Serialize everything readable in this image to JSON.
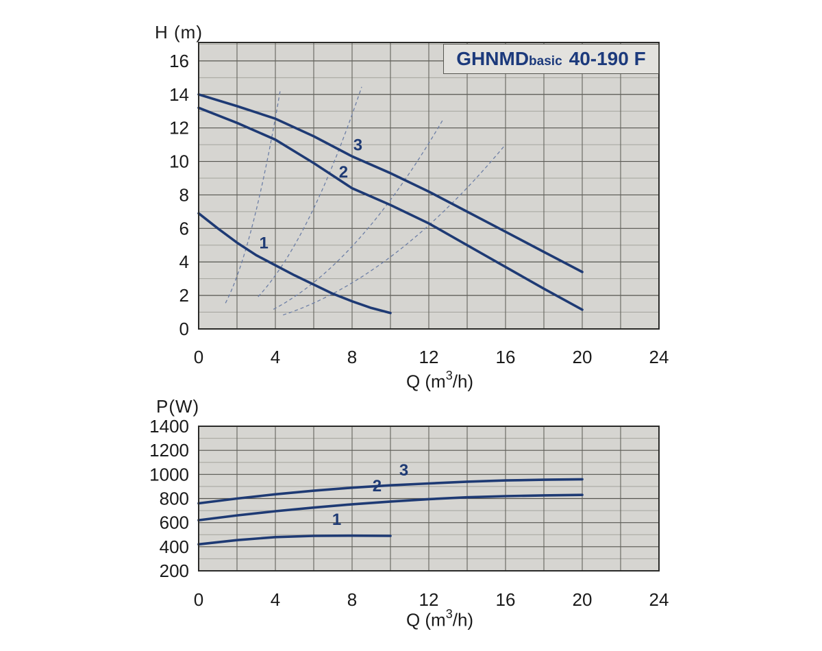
{
  "title": {
    "brand": "GHNMD",
    "sub": "basic",
    "model": "40-190 F"
  },
  "colors": {
    "curve": "#1e3a74",
    "curve_label": "#1e3a74",
    "system_curve": "#6d7fa6",
    "plot_bg": "#d6d5d1",
    "grid_major": "#55554f",
    "grid_minor": "#a3a39c",
    "grid_vertical": "#63635d",
    "border": "#2a2a28",
    "tick_text": "#1a1a1a",
    "title_text": "#1c3a7c",
    "title_band_bg": "#e3e2de"
  },
  "chart_data": [
    {
      "type": "line",
      "title": "GHNMD basic 40-190 F",
      "xlabel": "Q (m³/h)",
      "xlabel_parts": {
        "prefix": "Q (m",
        "sup": "3",
        "suffix": "/h)"
      },
      "ylabel": "H (m)",
      "xlim": [
        0,
        24
      ],
      "ylim": [
        0,
        17.1
      ],
      "xticks": [
        0,
        4,
        8,
        12,
        16,
        20,
        24
      ],
      "yticks": [
        0,
        2,
        4,
        6,
        8,
        10,
        12,
        14,
        16
      ],
      "grid": {
        "x_step": 2,
        "y_minor_step": 1,
        "y_major_step": 2,
        "legend": "none"
      },
      "series": [
        {
          "name": "1",
          "x": [
            0,
            1,
            2,
            3,
            4,
            5,
            6,
            7,
            8,
            9,
            10
          ],
          "y": [
            6.9,
            6.0,
            5.15,
            4.4,
            3.8,
            3.2,
            2.65,
            2.1,
            1.65,
            1.25,
            0.95
          ],
          "label_pos": [
            3.4,
            4.8
          ]
        },
        {
          "name": "2",
          "x": [
            0,
            2,
            4,
            6,
            8,
            10,
            12,
            14,
            16,
            18,
            20
          ],
          "y": [
            13.2,
            12.3,
            11.3,
            9.9,
            8.4,
            7.4,
            6.3,
            5.0,
            3.7,
            2.4,
            1.15
          ],
          "label_pos": [
            7.55,
            9.05
          ]
        },
        {
          "name": "3",
          "x": [
            0,
            2,
            4,
            6,
            8,
            10,
            12,
            14,
            16,
            18,
            20
          ],
          "y": [
            14.0,
            13.3,
            12.55,
            11.5,
            10.3,
            9.3,
            8.2,
            7.0,
            5.8,
            4.6,
            3.4
          ],
          "label_pos": [
            8.3,
            10.65
          ]
        }
      ],
      "system_curves": [
        {
          "k": 0.787,
          "q_start": 1.4,
          "q_end": 4.3
        },
        {
          "k": 0.2,
          "q_start": 3.1,
          "q_end": 8.5
        },
        {
          "k": 0.077,
          "q_start": 3.9,
          "q_end": 12.8
        },
        {
          "k": 0.043,
          "q_start": 4.4,
          "q_end": 16.0
        }
      ]
    },
    {
      "type": "line",
      "title": "",
      "xlabel": "Q (m³/h)",
      "xlabel_parts": {
        "prefix": "Q (m",
        "sup": "3",
        "suffix": "/h)"
      },
      "ylabel": "P(W)",
      "xlim": [
        0,
        24
      ],
      "ylim": [
        200,
        1400
      ],
      "xticks": [
        0,
        4,
        8,
        12,
        16,
        20,
        24
      ],
      "yticks": [
        200,
        400,
        600,
        800,
        1000,
        1200,
        1400
      ],
      "grid": {
        "x_step": 2,
        "y_minor_step": 100,
        "y_major_step": 200,
        "legend": "none"
      },
      "series": [
        {
          "name": "1",
          "x": [
            0,
            2,
            4,
            6,
            8,
            10
          ],
          "y": [
            420,
            455,
            480,
            490,
            492,
            490
          ],
          "label_pos": [
            7.2,
            580
          ]
        },
        {
          "name": "2",
          "x": [
            0,
            2,
            4,
            6,
            8,
            10,
            12,
            14,
            16,
            18,
            20
          ],
          "y": [
            620,
            660,
            695,
            725,
            752,
            775,
            795,
            810,
            820,
            826,
            830
          ],
          "label_pos": [
            9.3,
            860
          ]
        },
        {
          "name": "3",
          "x": [
            0,
            2,
            4,
            6,
            8,
            10,
            12,
            14,
            16,
            18,
            20
          ],
          "y": [
            760,
            800,
            835,
            865,
            890,
            910,
            925,
            940,
            950,
            956,
            960
          ],
          "label_pos": [
            10.7,
            990
          ]
        }
      ],
      "system_curves": []
    }
  ]
}
